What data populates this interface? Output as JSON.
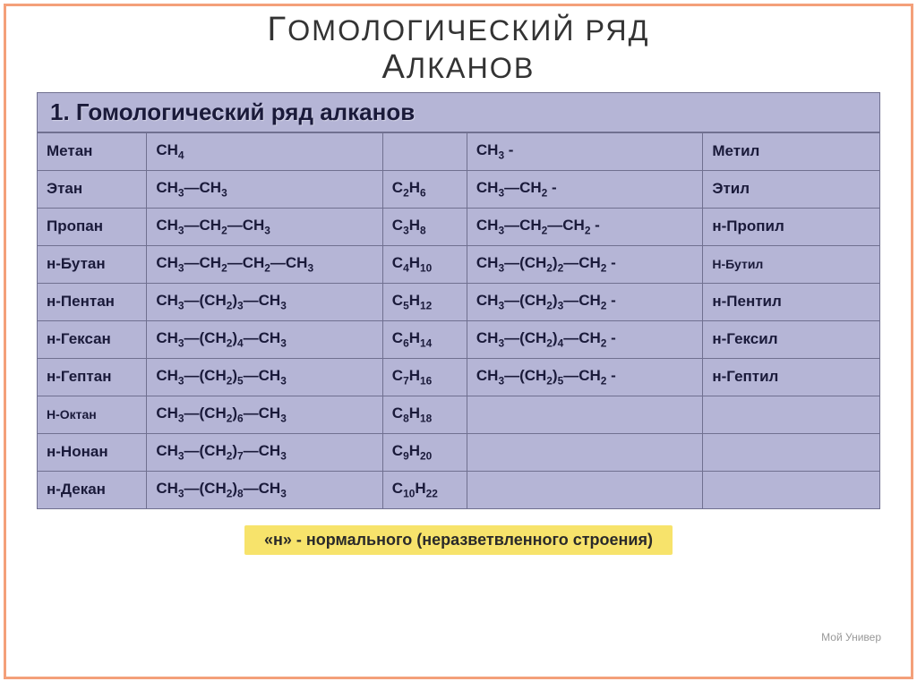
{
  "main_title_html": "Г<span style='font-size:0.85em'>ОМОЛОГИЧЕСКИЙ РЯД</span><br>А<span style='font-size:0.85em'>ЛКАНОВ</span>",
  "sub_title": "1. Гомологический ряд алканов",
  "columns": [
    "name",
    "structural",
    "molecular",
    "radical_struct",
    "radical_name"
  ],
  "rows": [
    {
      "name": "Метан",
      "structural": "CH<sub>4</sub>",
      "molecular": "",
      "radical_struct": "CH<sub>3</sub> -",
      "radical_name": "Метил"
    },
    {
      "name": "Этан",
      "structural": "CH<sub>3</sub>—CH<sub>3</sub>",
      "molecular": "C<sub>2</sub>H<sub>6</sub>",
      "radical_struct": "CH<sub>3</sub>—CH<sub>2</sub> -",
      "radical_name": "Этил"
    },
    {
      "name": "Пропан",
      "structural": "CH<sub>3</sub>—CH<sub>2</sub>—CH<sub>3</sub>",
      "molecular": "C<sub>3</sub>H<sub>8</sub>",
      "radical_struct": "CH<sub>3</sub>—CH<sub>2</sub>—CH<sub>2</sub> -",
      "radical_name": "н-Пропил"
    },
    {
      "name": "н-Бутан",
      "structural": "CH<sub>3</sub>—CH<sub>2</sub>—CH<sub>2</sub>—CH<sub>3</sub>",
      "molecular": "C<sub>4</sub>H<sub>10</sub>",
      "radical_struct": "CH<sub>3</sub>—(CH<sub>2</sub>)<sub>2</sub>—CH<sub>2</sub> -",
      "radical_name": "Н-Бутил",
      "radical_name_small": true
    },
    {
      "name": "н-Пентан",
      "structural": "CH<sub>3</sub>—(CH<sub>2</sub>)<sub>3</sub>—CH<sub>3</sub>",
      "molecular": "C<sub>5</sub>H<sub>12</sub>",
      "radical_struct": "CH<sub>3</sub>—(CH<sub>2</sub>)<sub>3</sub>—CH<sub>2</sub> -",
      "radical_name": "н-Пентил"
    },
    {
      "name": "н-Гексан",
      "structural": "CH<sub>3</sub>—(CH<sub>2</sub>)<sub>4</sub>—CH<sub>3</sub>",
      "molecular": "C<sub>6</sub>H<sub>14</sub>",
      "radical_struct": "CH<sub>3</sub>—(CH<sub>2</sub>)<sub>4</sub>—CH<sub>2</sub> -",
      "radical_name": "н-Гексил"
    },
    {
      "name": "н-Гептан",
      "structural": "CH<sub>3</sub>—(CH<sub>2</sub>)<sub>5</sub>—CH<sub>3</sub>",
      "molecular": "C<sub>7</sub>H<sub>16</sub>",
      "radical_struct": "CH<sub>3</sub>—(CH<sub>2</sub>)<sub>5</sub>—CH<sub>2</sub> -",
      "radical_name": "н-Гептил"
    },
    {
      "name": "Н-Октан",
      "structural": "CH<sub>3</sub>—(CH<sub>2</sub>)<sub>6</sub>—CH<sub>3</sub>",
      "molecular": "C<sub>8</sub>H<sub>18</sub>",
      "radical_struct": "",
      "radical_name": "",
      "name_small": true
    },
    {
      "name": "н-Нонан",
      "structural": "CH<sub>3</sub>—(CH<sub>2</sub>)<sub>7</sub>—CH<sub>3</sub>",
      "molecular": "C<sub>9</sub>H<sub>20</sub>",
      "radical_struct": "",
      "radical_name": ""
    },
    {
      "name": "н-Декан",
      "structural": "CH<sub>3</sub>—(CH<sub>2</sub>)<sub>8</sub>—CH<sub>3</sub>",
      "molecular": "C<sub>10</sub>H<sub>22</sub>",
      "radical_struct": "",
      "radical_name": ""
    }
  ],
  "footer_note": "«н» - нормального (неразветвленного строения)",
  "watermark": "Мой Универ",
  "colors": {
    "frame_border": "#f4a07a",
    "table_bg": "#b5b5d6",
    "table_border": "#707090",
    "text": "#1a1a3a",
    "footer_bg": "#f7e36b"
  }
}
